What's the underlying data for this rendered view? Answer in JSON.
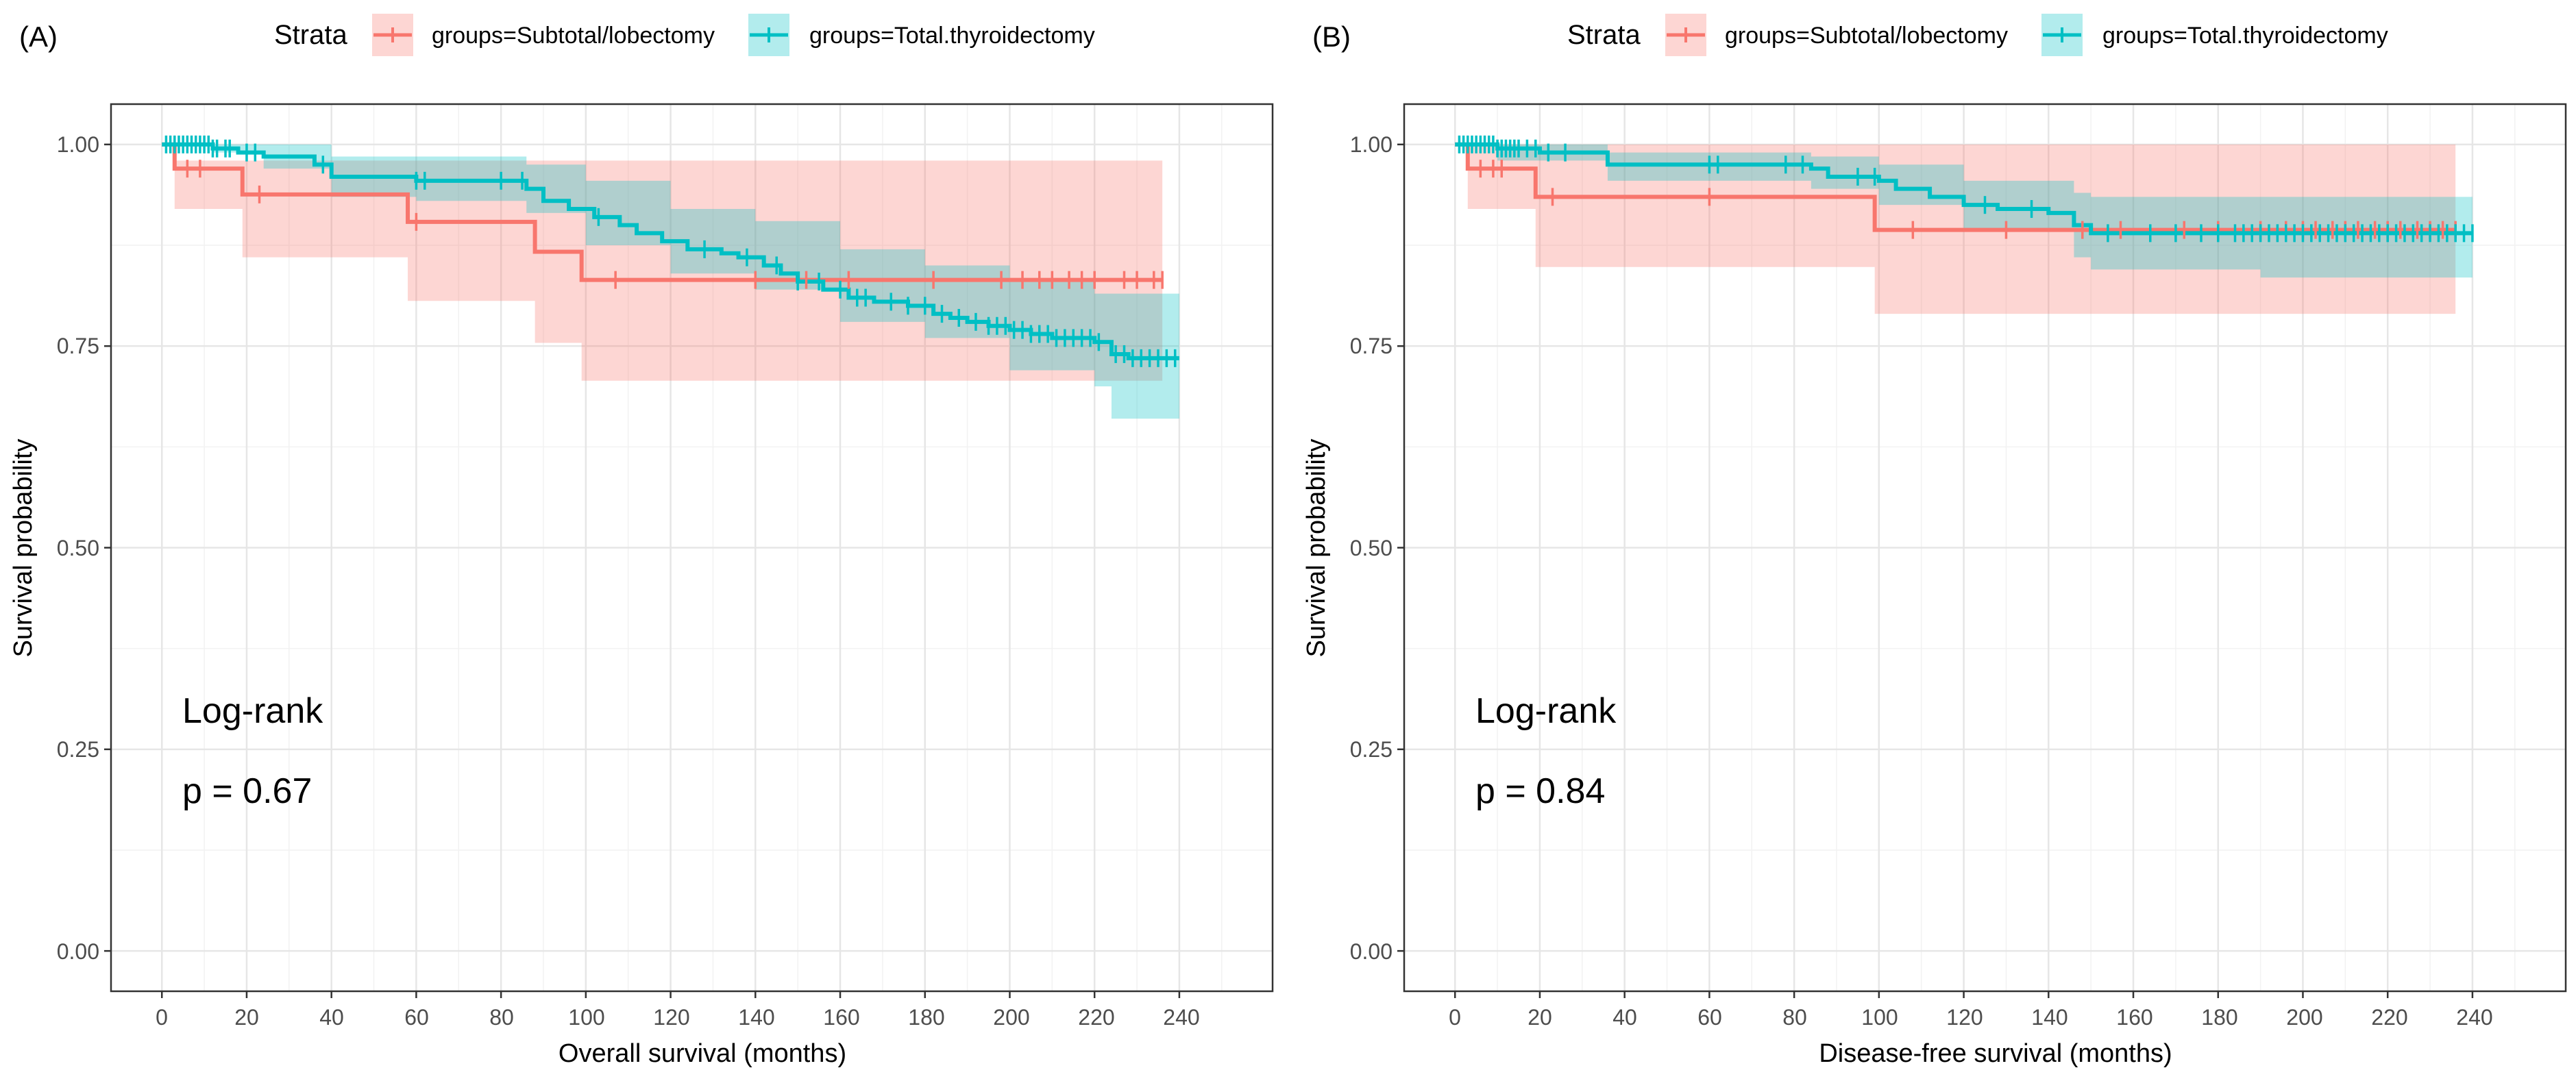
{
  "chart_data": [
    {
      "type": "line",
      "panel_label": "(A)",
      "legend_title": "Strata",
      "legend_labels": [
        "groups=Subtotal/lobectomy",
        "groups=Total.thyroidectomy"
      ],
      "xlabel": "Overall survival (months)",
      "ylabel": "Survival probability",
      "xticks": [
        "0",
        "20",
        "40",
        "60",
        "80",
        "100",
        "120",
        "140",
        "160",
        "180",
        "200",
        "220",
        "240"
      ],
      "yticks": [
        "0.00",
        "0.25",
        "0.50",
        "0.75",
        "1.00"
      ],
      "xlim": [
        -12,
        262
      ],
      "ylim": [
        -0.05,
        1.05
      ],
      "annotation": {
        "title": "Log-rank",
        "pvalue": "p = 0.67"
      },
      "series": [
        {
          "name": "groups=Subtotal/lobectomy",
          "color": "#F8766D",
          "steps": [
            [
              0,
              1.0
            ],
            [
              3,
              0.97
            ],
            [
              19,
              0.938
            ],
            [
              58,
              0.904
            ],
            [
              88,
              0.867
            ],
            [
              99,
              0.832
            ],
            [
              236,
              0.832
            ]
          ],
          "band": [
            [
              0,
              1.0,
              1.0
            ],
            [
              3,
              0.98,
              0.92
            ],
            [
              19,
              0.98,
              0.86
            ],
            [
              58,
              0.98,
              0.806
            ],
            [
              88,
              0.98,
              0.754
            ],
            [
              99,
              0.98,
              0.707
            ],
            [
              236,
              0.98,
              0.707
            ]
          ],
          "censor": [
            6,
            9,
            23,
            60,
            107,
            140,
            152,
            162,
            182,
            198,
            203,
            207,
            210,
            214,
            217,
            220,
            227,
            230,
            234,
            236
          ]
        },
        {
          "name": "groups=Total.thyroidectomy",
          "color": "#00BFC4",
          "steps": [
            [
              0,
              1.0
            ],
            [
              12,
              0.995
            ],
            [
              18,
              0.99
            ],
            [
              24,
              0.985
            ],
            [
              36,
              0.975
            ],
            [
              40,
              0.96
            ],
            [
              58,
              0.96
            ],
            [
              60,
              0.955
            ],
            [
              82,
              0.955
            ],
            [
              86,
              0.945
            ],
            [
              90,
              0.93
            ],
            [
              96,
              0.92
            ],
            [
              102,
              0.91
            ],
            [
              108,
              0.9
            ],
            [
              112,
              0.89
            ],
            [
              118,
              0.88
            ],
            [
              124,
              0.87
            ],
            [
              132,
              0.865
            ],
            [
              136,
              0.86
            ],
            [
              142,
              0.85
            ],
            [
              146,
              0.84
            ],
            [
              150,
              0.83
            ],
            [
              156,
              0.82
            ],
            [
              162,
              0.81
            ],
            [
              168,
              0.805
            ],
            [
              176,
              0.8
            ],
            [
              182,
              0.79
            ],
            [
              186,
              0.785
            ],
            [
              190,
              0.78
            ],
            [
              195,
              0.775
            ],
            [
              200,
              0.77
            ],
            [
              205,
              0.765
            ],
            [
              210,
              0.76
            ],
            [
              220,
              0.755
            ],
            [
              224,
              0.74
            ],
            [
              228,
              0.735
            ],
            [
              240,
              0.735
            ]
          ],
          "band": [
            [
              0,
              1.0,
              1.0
            ],
            [
              12,
              1.0,
              0.99
            ],
            [
              24,
              1.0,
              0.97
            ],
            [
              40,
              0.985,
              0.935
            ],
            [
              60,
              0.985,
              0.93
            ],
            [
              86,
              0.975,
              0.915
            ],
            [
              100,
              0.955,
              0.875
            ],
            [
              120,
              0.92,
              0.84
            ],
            [
              140,
              0.905,
              0.82
            ],
            [
              160,
              0.87,
              0.78
            ],
            [
              180,
              0.85,
              0.76
            ],
            [
              200,
              0.83,
              0.72
            ],
            [
              220,
              0.815,
              0.7
            ],
            [
              224,
              0.815,
              0.66
            ],
            [
              240,
              0.815,
              0.66
            ]
          ],
          "censor": [
            1,
            2,
            3,
            4,
            5,
            6,
            7,
            8,
            9,
            10,
            11,
            12,
            13,
            15,
            16,
            20,
            22,
            38,
            60,
            62,
            80,
            85,
            103,
            128,
            138,
            145,
            150,
            155,
            160,
            164,
            166,
            172,
            176,
            180,
            184,
            188,
            192,
            195,
            197,
            199,
            201,
            203,
            205,
            207,
            209,
            211,
            213,
            215,
            217,
            219,
            221,
            225,
            227,
            229,
            231,
            233,
            235,
            237,
            239
          ]
        }
      ]
    },
    {
      "type": "line",
      "panel_label": "(B)",
      "legend_title": "Strata",
      "legend_labels": [
        "groups=Subtotal/lobectomy",
        "groups=Total.thyroidectomy"
      ],
      "xlabel": "Disease-free survival (months)",
      "ylabel": "Survival probability",
      "xticks": [
        "0",
        "20",
        "40",
        "60",
        "80",
        "100",
        "120",
        "140",
        "160",
        "180",
        "200",
        "220",
        "240"
      ],
      "yticks": [
        "0.00",
        "0.25",
        "0.50",
        "0.75",
        "1.00"
      ],
      "xlim": [
        -12,
        262
      ],
      "ylim": [
        -0.05,
        1.05
      ],
      "annotation": {
        "title": "Log-rank",
        "pvalue": "p = 0.84"
      },
      "series": [
        {
          "name": "groups=Subtotal/lobectomy",
          "color": "#F8766D",
          "steps": [
            [
              0,
              1.0
            ],
            [
              3,
              0.97
            ],
            [
              19,
              0.935
            ],
            [
              99,
              0.894
            ],
            [
              236,
              0.894
            ]
          ],
          "band": [
            [
              0,
              1.0,
              1.0
            ],
            [
              3,
              1.0,
              0.92
            ],
            [
              19,
              1.0,
              0.848
            ],
            [
              99,
              1.0,
              0.79
            ],
            [
              236,
              1.0,
              0.79
            ]
          ],
          "censor": [
            6,
            9,
            11,
            23,
            60,
            108,
            130,
            148,
            157,
            172,
            180,
            190,
            196,
            200,
            203,
            207,
            210,
            213,
            217,
            220,
            223,
            227,
            230,
            233,
            236
          ]
        },
        {
          "name": "groups=Total.thyroidectomy",
          "color": "#00BFC4",
          "steps": [
            [
              0,
              1.0
            ],
            [
              10,
              0.995
            ],
            [
              20,
              0.99
            ],
            [
              36,
              0.975
            ],
            [
              60,
              0.975
            ],
            [
              84,
              0.97
            ],
            [
              88,
              0.96
            ],
            [
              100,
              0.955
            ],
            [
              104,
              0.945
            ],
            [
              112,
              0.935
            ],
            [
              120,
              0.925
            ],
            [
              128,
              0.92
            ],
            [
              140,
              0.915
            ],
            [
              146,
              0.9
            ],
            [
              150,
              0.89
            ],
            [
              240,
              0.89
            ]
          ],
          "band": [
            [
              0,
              1.0,
              1.0
            ],
            [
              10,
              1.0,
              0.98
            ],
            [
              36,
              0.99,
              0.955
            ],
            [
              84,
              0.985,
              0.945
            ],
            [
              100,
              0.975,
              0.925
            ],
            [
              120,
              0.955,
              0.895
            ],
            [
              146,
              0.94,
              0.86
            ],
            [
              150,
              0.935,
              0.845
            ],
            [
              190,
              0.935,
              0.835
            ],
            [
              240,
              0.935,
              0.835
            ]
          ],
          "censor": [
            1,
            2,
            3,
            4,
            5,
            6,
            7,
            8,
            9,
            10,
            11,
            12,
            13,
            14,
            15,
            17,
            19,
            22,
            26,
            60,
            62,
            78,
            82,
            95,
            99,
            125,
            136,
            154,
            164,
            170,
            176,
            180,
            184,
            186,
            188,
            190,
            192,
            194,
            196,
            198,
            200,
            202,
            204,
            206,
            208,
            210,
            212,
            214,
            216,
            218,
            220,
            222,
            224,
            226,
            228,
            230,
            232,
            234,
            236,
            238,
            240
          ]
        }
      ]
    }
  ]
}
